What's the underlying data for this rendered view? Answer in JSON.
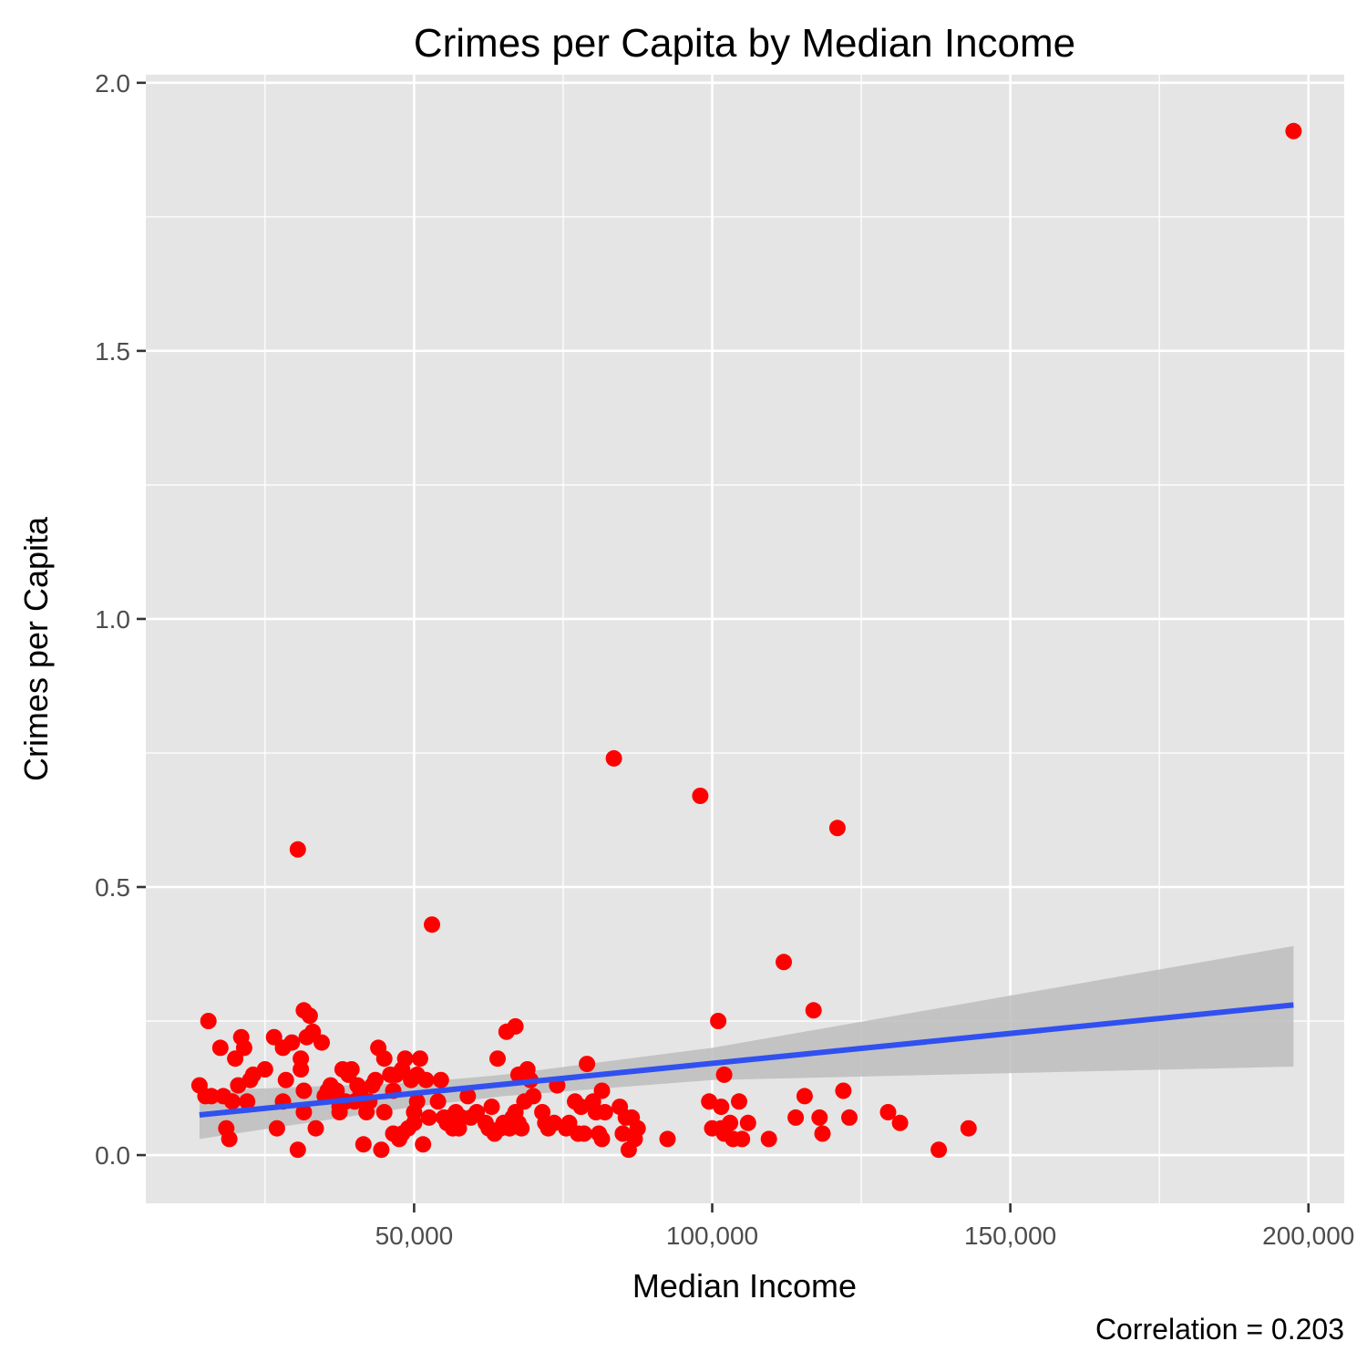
{
  "chart_data": {
    "type": "scatter",
    "title": "Crimes per Capita by Median Income",
    "xlabel": "Median Income",
    "ylabel": "Crimes per Capita",
    "caption": "Correlation = 0.203",
    "xlim": [
      5000,
      206000
    ],
    "ylim": [
      -0.09,
      2.015
    ],
    "x_ticks": [
      50000,
      100000,
      150000,
      200000
    ],
    "x_tick_labels": [
      "50,000",
      "100,000",
      "150,000",
      "200,000"
    ],
    "x_minor_ticks": [
      25000,
      75000,
      125000,
      175000
    ],
    "y_ticks": [
      0.0,
      0.5,
      1.0,
      1.5,
      2.0
    ],
    "y_tick_labels": [
      "0.0",
      "0.5",
      "1.0",
      "1.5",
      "2.0"
    ],
    "y_minor_ticks": [
      0.25,
      0.75,
      1.25,
      1.75
    ],
    "grid": true,
    "legend": "none",
    "colors": {
      "panel": "#e5e5e5",
      "grid": "#ffffff",
      "points": "#ff0000",
      "trend": "#3050f0",
      "band": "#bdbdbd"
    },
    "points": [
      [
        14000,
        0.13
      ],
      [
        15000,
        0.11
      ],
      [
        15500,
        0.25
      ],
      [
        16000,
        0.11
      ],
      [
        17500,
        0.2
      ],
      [
        18000,
        0.11
      ],
      [
        18500,
        0.05
      ],
      [
        19000,
        0.03
      ],
      [
        19500,
        0.1
      ],
      [
        20000,
        0.18
      ],
      [
        20500,
        0.13
      ],
      [
        21000,
        0.22
      ],
      [
        21500,
        0.2
      ],
      [
        22000,
        0.1
      ],
      [
        22500,
        0.14
      ],
      [
        23000,
        0.15
      ],
      [
        25000,
        0.16
      ],
      [
        26500,
        0.22
      ],
      [
        27000,
        0.05
      ],
      [
        28000,
        0.1
      ],
      [
        28000,
        0.2
      ],
      [
        28500,
        0.14
      ],
      [
        29500,
        0.21
      ],
      [
        30500,
        0.57
      ],
      [
        30500,
        0.01
      ],
      [
        31000,
        0.18
      ],
      [
        31000,
        0.16
      ],
      [
        31500,
        0.27
      ],
      [
        31500,
        0.12
      ],
      [
        31500,
        0.08
      ],
      [
        32000,
        0.22
      ],
      [
        32500,
        0.26
      ],
      [
        33000,
        0.23
      ],
      [
        33500,
        0.05
      ],
      [
        34500,
        0.21
      ],
      [
        35000,
        0.11
      ],
      [
        35500,
        0.12
      ],
      [
        36000,
        0.13
      ],
      [
        36500,
        0.11
      ],
      [
        37000,
        0.12
      ],
      [
        37500,
        0.09
      ],
      [
        37500,
        0.08
      ],
      [
        38000,
        0.16
      ],
      [
        38500,
        0.1
      ],
      [
        39000,
        0.15
      ],
      [
        39500,
        0.16
      ],
      [
        40000,
        0.1
      ],
      [
        40500,
        0.13
      ],
      [
        41000,
        0.12
      ],
      [
        41500,
        0.02
      ],
      [
        42000,
        0.08
      ],
      [
        42500,
        0.1
      ],
      [
        43000,
        0.13
      ],
      [
        43500,
        0.14
      ],
      [
        44000,
        0.2
      ],
      [
        44500,
        0.01
      ],
      [
        45000,
        0.18
      ],
      [
        45000,
        0.08
      ],
      [
        46000,
        0.15
      ],
      [
        46500,
        0.04
      ],
      [
        46500,
        0.12
      ],
      [
        47000,
        0.15
      ],
      [
        47500,
        0.03
      ],
      [
        48000,
        0.04
      ],
      [
        48000,
        0.16
      ],
      [
        48500,
        0.18
      ],
      [
        49000,
        0.05
      ],
      [
        49500,
        0.14
      ],
      [
        50000,
        0.06
      ],
      [
        50000,
        0.08
      ],
      [
        50500,
        0.1
      ],
      [
        50500,
        0.15
      ],
      [
        51000,
        0.18
      ],
      [
        51500,
        0.02
      ],
      [
        52000,
        0.14
      ],
      [
        52500,
        0.07
      ],
      [
        53000,
        0.43
      ],
      [
        54000,
        0.1
      ],
      [
        54500,
        0.14
      ],
      [
        55000,
        0.07
      ],
      [
        55500,
        0.06
      ],
      [
        56000,
        0.07
      ],
      [
        56500,
        0.05
      ],
      [
        57000,
        0.08
      ],
      [
        57500,
        0.05
      ],
      [
        58000,
        0.07
      ],
      [
        59000,
        0.11
      ],
      [
        59500,
        0.07
      ],
      [
        60500,
        0.08
      ],
      [
        62000,
        0.06
      ],
      [
        62500,
        0.05
      ],
      [
        63000,
        0.09
      ],
      [
        63500,
        0.04
      ],
      [
        64000,
        0.18
      ],
      [
        64500,
        0.05
      ],
      [
        65000,
        0.06
      ],
      [
        65500,
        0.23
      ],
      [
        66000,
        0.05
      ],
      [
        66500,
        0.07
      ],
      [
        67000,
        0.24
      ],
      [
        67000,
        0.08
      ],
      [
        67500,
        0.06
      ],
      [
        67500,
        0.15
      ],
      [
        68000,
        0.05
      ],
      [
        68500,
        0.1
      ],
      [
        69000,
        0.16
      ],
      [
        69500,
        0.14
      ],
      [
        70000,
        0.11
      ],
      [
        71500,
        0.08
      ],
      [
        72000,
        0.06
      ],
      [
        72500,
        0.05
      ],
      [
        73500,
        0.06
      ],
      [
        74000,
        0.13
      ],
      [
        75500,
        0.05
      ],
      [
        76000,
        0.06
      ],
      [
        77000,
        0.1
      ],
      [
        77500,
        0.04
      ],
      [
        78000,
        0.09
      ],
      [
        78500,
        0.04
      ],
      [
        79000,
        0.17
      ],
      [
        80000,
        0.1
      ],
      [
        80500,
        0.08
      ],
      [
        81000,
        0.04
      ],
      [
        81500,
        0.12
      ],
      [
        81500,
        0.03
      ],
      [
        82000,
        0.08
      ],
      [
        83500,
        0.74
      ],
      [
        84500,
        0.09
      ],
      [
        85000,
        0.04
      ],
      [
        85500,
        0.07
      ],
      [
        86000,
        0.01
      ],
      [
        86500,
        0.07
      ],
      [
        87000,
        0.03
      ],
      [
        87500,
        0.05
      ],
      [
        92500,
        0.03
      ],
      [
        98000,
        0.67
      ],
      [
        99500,
        0.1
      ],
      [
        100000,
        0.05
      ],
      [
        101000,
        0.25
      ],
      [
        101500,
        0.09
      ],
      [
        101500,
        0.05
      ],
      [
        102000,
        0.15
      ],
      [
        102000,
        0.04
      ],
      [
        103000,
        0.06
      ],
      [
        103500,
        0.03
      ],
      [
        104500,
        0.1
      ],
      [
        105000,
        0.03
      ],
      [
        106000,
        0.06
      ],
      [
        109500,
        0.03
      ],
      [
        112000,
        0.36
      ],
      [
        114000,
        0.07
      ],
      [
        115500,
        0.11
      ],
      [
        117000,
        0.27
      ],
      [
        118000,
        0.07
      ],
      [
        118500,
        0.04
      ],
      [
        121000,
        0.61
      ],
      [
        122000,
        0.12
      ],
      [
        123000,
        0.07
      ],
      [
        129500,
        0.08
      ],
      [
        131500,
        0.06
      ],
      [
        138000,
        0.01
      ],
      [
        143000,
        0.05
      ],
      [
        197500,
        1.91
      ]
    ],
    "trend_line": {
      "x": [
        14000,
        197500
      ],
      "y": [
        0.075,
        0.28
      ]
    },
    "confidence_band": {
      "x": [
        14000,
        50000,
        65000,
        100000,
        197500
      ],
      "lower": [
        0.03,
        0.09,
        0.11,
        0.14,
        0.165
      ],
      "upper": [
        0.12,
        0.135,
        0.15,
        0.2,
        0.39
      ]
    }
  }
}
